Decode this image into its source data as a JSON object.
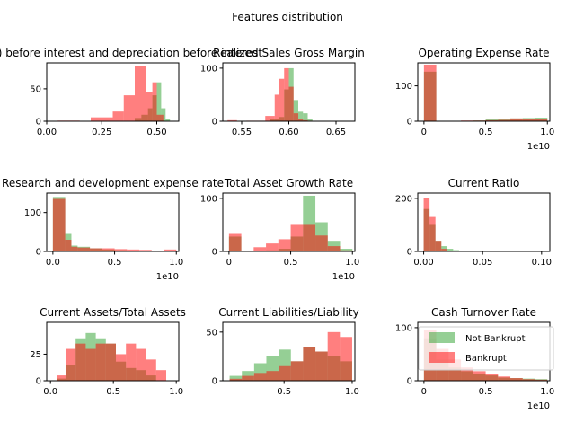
{
  "figure": {
    "title": "Features distribution"
  },
  "colors": {
    "not_bankrupt": "#2ca02c",
    "bankrupt": "#ff0000",
    "overlap": "#b2593b"
  },
  "legend": {
    "location": "lower-right of last panel",
    "entries": [
      {
        "label": "Not Bankrupt",
        "color": "#2ca02c"
      },
      {
        "label": "Bankrupt",
        "color": "#ff0000"
      }
    ]
  },
  "chart_data": [
    {
      "type": "bar",
      "title": "ROA(C) before interest and depreciation before interest",
      "xlim": [
        0,
        0.6
      ],
      "ylim": [
        0,
        90
      ],
      "xticks": [
        0,
        0.25,
        0.5
      ],
      "xtick_labels": [
        "0.00",
        "0.25",
        "0.50"
      ],
      "yticks": [
        0,
        50
      ],
      "ytick_labels": [
        "0",
        "50"
      ],
      "offset": "",
      "series": [
        {
          "name": "Not Bankrupt",
          "bins": [
            0.4,
            0.43,
            0.46,
            0.48,
            0.5,
            0.52,
            0.54,
            0.56
          ],
          "values": [
            5,
            10,
            20,
            40,
            60,
            20,
            3
          ]
        },
        {
          "name": "Bankrupt",
          "bins": [
            0.05,
            0.1,
            0.15,
            0.2,
            0.25,
            0.3,
            0.35,
            0.4,
            0.45,
            0.48,
            0.5,
            0.53
          ],
          "values": [
            1,
            1,
            0,
            6,
            6,
            15,
            40,
            85,
            45,
            60,
            10
          ]
        }
      ]
    },
    {
      "type": "bar",
      "title": "Realized Sales Gross Margin",
      "xlim": [
        0.53,
        0.67
      ],
      "ylim": [
        0,
        110
      ],
      "xticks": [
        0.55,
        0.6,
        0.65
      ],
      "xtick_labels": [
        "0.55",
        "0.60",
        "0.65"
      ],
      "yticks": [
        0,
        100
      ],
      "ytick_labels": [
        "0",
        "100"
      ],
      "offset": "",
      "series": [
        {
          "name": "Not Bankrupt",
          "bins": [
            0.58,
            0.59,
            0.595,
            0.6,
            0.605,
            0.61,
            0.615,
            0.62,
            0.625
          ],
          "values": [
            4,
            8,
            60,
            100,
            40,
            18,
            15,
            5
          ]
        },
        {
          "name": "Bankrupt",
          "bins": [
            0.535,
            0.545,
            0.555,
            0.565,
            0.575,
            0.585,
            0.59,
            0.595,
            0.6,
            0.605,
            0.61,
            0.615,
            0.62,
            0.625
          ],
          "values": [
            2,
            0,
            1,
            1,
            10,
            50,
            80,
            100,
            65,
            15,
            5,
            2,
            1
          ]
        }
      ]
    },
    {
      "type": "bar",
      "title": "Operating Expense Rate",
      "xlim": [
        -0.05,
        1.02
      ],
      "ylim": [
        0,
        165
      ],
      "xticks": [
        0,
        0.5,
        1.0
      ],
      "xtick_labels": [
        "0",
        "0.5",
        "1.0"
      ],
      "yticks": [
        0,
        100
      ],
      "ytick_labels": [
        "0",
        "100"
      ],
      "offset": "1e10",
      "series": [
        {
          "name": "Not Bankrupt",
          "bins": [
            0,
            0.1,
            0.2,
            0.3,
            0.4,
            0.5,
            0.6,
            0.7,
            0.8,
            0.9,
            1.0
          ],
          "values": [
            140,
            1,
            1,
            1,
            2,
            5,
            6,
            8,
            9,
            10
          ]
        },
        {
          "name": "Bankrupt",
          "bins": [
            0,
            0.1,
            0.2,
            0.3,
            0.4,
            0.5,
            0.6,
            0.7,
            0.8,
            0.9,
            1.0
          ],
          "values": [
            160,
            1,
            1,
            2,
            2,
            3,
            4,
            8,
            7,
            6
          ]
        }
      ]
    },
    {
      "type": "bar",
      "title": "Research and development expense rate",
      "xlim": [
        -0.05,
        1.02
      ],
      "ylim": [
        0,
        150
      ],
      "xticks": [
        0,
        0.5,
        1.0
      ],
      "xtick_labels": [
        "0.0",
        "0.5",
        "1.0"
      ],
      "yticks": [
        0,
        100
      ],
      "ytick_labels": [
        "0",
        "100"
      ],
      "offset": "1e10",
      "series": [
        {
          "name": "Not Bankrupt",
          "bins": [
            0,
            0.1,
            0.15,
            0.2,
            0.3,
            0.4,
            0.5,
            0.6,
            0.7,
            0.8,
            0.9,
            1.0
          ],
          "values": [
            140,
            45,
            15,
            12,
            8,
            5,
            3,
            2,
            1,
            1,
            1
          ]
        },
        {
          "name": "Bankrupt",
          "bins": [
            0,
            0.1,
            0.15,
            0.2,
            0.3,
            0.4,
            0.5,
            0.6,
            0.7,
            0.8,
            0.9,
            1.0
          ],
          "values": [
            135,
            30,
            12,
            10,
            8,
            8,
            6,
            5,
            4,
            0,
            5
          ]
        }
      ]
    },
    {
      "type": "bar",
      "title": "Total Asset Growth Rate",
      "xlim": [
        -0.05,
        1.02
      ],
      "ylim": [
        0,
        110
      ],
      "xticks": [
        0,
        0.5,
        1.0
      ],
      "xtick_labels": [
        "0",
        "0.5",
        "1.0"
      ],
      "yticks": [
        0,
        100
      ],
      "ytick_labels": [
        "0",
        "100"
      ],
      "offset": "1e10",
      "series": [
        {
          "name": "Not Bankrupt",
          "bins": [
            0,
            0.1,
            0.2,
            0.3,
            0.4,
            0.5,
            0.6,
            0.7,
            0.8,
            0.9,
            1.0
          ],
          "values": [
            28,
            0,
            0,
            2,
            5,
            28,
            105,
            55,
            20,
            5
          ]
        },
        {
          "name": "Bankrupt",
          "bins": [
            0,
            0.1,
            0.2,
            0.3,
            0.4,
            0.5,
            0.6,
            0.7,
            0.8,
            0.9,
            1.0
          ],
          "values": [
            33,
            0,
            8,
            15,
            23,
            50,
            50,
            30,
            10,
            2
          ]
        }
      ]
    },
    {
      "type": "bar",
      "title": "Current Ratio",
      "xlim": [
        -0.005,
        0.107
      ],
      "ylim": [
        0,
        220
      ],
      "xticks": [
        0,
        0.05,
        0.1
      ],
      "xtick_labels": [
        "0.00",
        "0.05",
        "0.10"
      ],
      "yticks": [
        0,
        200
      ],
      "ytick_labels": [
        "0",
        "200"
      ],
      "offset": "",
      "series": [
        {
          "name": "Not Bankrupt",
          "bins": [
            0,
            0.005,
            0.01,
            0.015,
            0.02,
            0.025,
            0.03
          ],
          "values": [
            160,
            100,
            40,
            20,
            10,
            5
          ]
        },
        {
          "name": "Bankrupt",
          "bins": [
            0,
            0.005,
            0.01,
            0.015,
            0.02,
            0.025,
            0.03
          ],
          "values": [
            200,
            130,
            40,
            10,
            2,
            1
          ]
        }
      ]
    },
    {
      "type": "bar",
      "title": "Current Assets/Total Assets",
      "xlim": [
        -0.03,
        1.02
      ],
      "ylim": [
        0,
        55
      ],
      "xticks": [
        0,
        0.5,
        1.0
      ],
      "xtick_labels": [
        "0.0",
        "0.5",
        "1.0"
      ],
      "yticks": [
        0,
        25
      ],
      "ytick_labels": [
        "0",
        "25"
      ],
      "offset": "",
      "series": [
        {
          "name": "Not Bankrupt",
          "bins": [
            0.05,
            0.12,
            0.2,
            0.28,
            0.36,
            0.44,
            0.52,
            0.6,
            0.68,
            0.76,
            0.84
          ],
          "values": [
            2,
            15,
            40,
            45,
            40,
            35,
            18,
            12,
            10,
            5
          ]
        },
        {
          "name": "Bankrupt",
          "bins": [
            0.05,
            0.12,
            0.2,
            0.28,
            0.36,
            0.44,
            0.52,
            0.6,
            0.68,
            0.76,
            0.84,
            0.92
          ],
          "values": [
            5,
            30,
            35,
            30,
            35,
            35,
            25,
            35,
            30,
            20,
            10
          ]
        }
      ]
    },
    {
      "type": "bar",
      "title": "Current Liabilities/Liability",
      "xlim": [
        0.05,
        1.02
      ],
      "ylim": [
        0,
        60
      ],
      "xticks": [
        0.5,
        1.0
      ],
      "xtick_labels": [
        "0.5",
        "1.0"
      ],
      "yticks": [
        0,
        50
      ],
      "ytick_labels": [
        "0",
        "50"
      ],
      "offset": "",
      "series": [
        {
          "name": "Not Bankrupt",
          "bins": [
            0.1,
            0.19,
            0.28,
            0.37,
            0.46,
            0.55,
            0.64,
            0.73,
            0.82,
            0.91,
            1.0
          ],
          "values": [
            5,
            10,
            18,
            25,
            32,
            20,
            35,
            30,
            25,
            20
          ]
        },
        {
          "name": "Bankrupt",
          "bins": [
            0.1,
            0.19,
            0.28,
            0.37,
            0.46,
            0.55,
            0.64,
            0.73,
            0.82,
            0.91,
            1.0
          ],
          "values": [
            2,
            5,
            8,
            10,
            15,
            20,
            35,
            30,
            50,
            45
          ]
        }
      ]
    },
    {
      "type": "bar",
      "title": "Cash Turnover Rate",
      "xlim": [
        -0.05,
        1.02
      ],
      "ylim": [
        0,
        110
      ],
      "xticks": [
        0,
        0.5,
        1.0
      ],
      "xtick_labels": [
        "0",
        "0.5",
        "1.0"
      ],
      "yticks": [
        0,
        100
      ],
      "ytick_labels": [
        "0",
        "100"
      ],
      "offset": "1e10",
      "series": [
        {
          "name": "Not Bankrupt",
          "bins": [
            0,
            0.1,
            0.2,
            0.3,
            0.4,
            0.5,
            0.6,
            0.7,
            0.8,
            0.9,
            1.0
          ],
          "values": [
            80,
            40,
            25,
            18,
            12,
            10,
            6,
            5,
            4,
            3
          ]
        },
        {
          "name": "Bankrupt",
          "bins": [
            0,
            0.1,
            0.2,
            0.3,
            0.4,
            0.5,
            0.6,
            0.7,
            0.8,
            0.9,
            1.0
          ],
          "values": [
            95,
            60,
            40,
            25,
            18,
            12,
            8,
            5,
            3,
            2
          ]
        }
      ]
    }
  ]
}
